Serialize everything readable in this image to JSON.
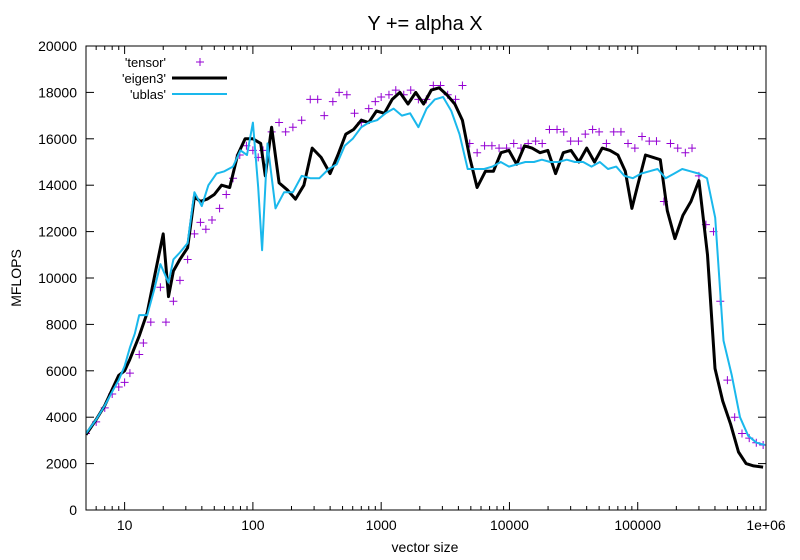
{
  "chart_data": {
    "type": "line",
    "title": "Y += alpha X",
    "xlabel": "vector size",
    "ylabel": "MFLOPS",
    "xscale": "log",
    "xlim": [
      5,
      1000000
    ],
    "ylim": [
      0,
      20000
    ],
    "xticks": [
      {
        "value": 10,
        "label": "10"
      },
      {
        "value": 100,
        "label": "100"
      },
      {
        "value": 1000,
        "label": "1000"
      },
      {
        "value": 10000,
        "label": "10000"
      },
      {
        "value": 100000,
        "label": "100000"
      },
      {
        "value": 1000000,
        "label": "1e+06"
      }
    ],
    "yticks": [
      {
        "value": 0,
        "label": "0"
      },
      {
        "value": 2000,
        "label": "2000"
      },
      {
        "value": 4000,
        "label": "4000"
      },
      {
        "value": 6000,
        "label": "6000"
      },
      {
        "value": 8000,
        "label": "8000"
      },
      {
        "value": 10000,
        "label": "10000"
      },
      {
        "value": 12000,
        "label": "12000"
      },
      {
        "value": 14000,
        "label": "14000"
      },
      {
        "value": 16000,
        "label": "16000"
      },
      {
        "value": 18000,
        "label": "18000"
      },
      {
        "value": 20000,
        "label": "20000"
      }
    ],
    "legend_position": "top-left",
    "series": [
      {
        "name": "'tensor'",
        "style": "points",
        "color": "#9400d3",
        "points": [
          [
            5,
            3300
          ],
          [
            6,
            3800
          ],
          [
            7,
            4400
          ],
          [
            8,
            5000
          ],
          [
            9,
            5300
          ],
          [
            10,
            5500
          ],
          [
            11,
            5900
          ],
          [
            13,
            6700
          ],
          [
            14,
            7200
          ],
          [
            16,
            8100
          ],
          [
            19,
            9600
          ],
          [
            21,
            8100
          ],
          [
            24,
            9000
          ],
          [
            27,
            9900
          ],
          [
            31,
            10800
          ],
          [
            35,
            11900
          ],
          [
            39,
            12400
          ],
          [
            43,
            12100
          ],
          [
            48,
            12500
          ],
          [
            55,
            13000
          ],
          [
            62,
            13600
          ],
          [
            70,
            14300
          ],
          [
            79,
            15300
          ],
          [
            89,
            15700
          ],
          [
            100,
            15500
          ],
          [
            110,
            15200
          ],
          [
            120,
            15500
          ],
          [
            140,
            16300
          ],
          [
            160,
            16700
          ],
          [
            180,
            16300
          ],
          [
            205,
            16500
          ],
          [
            240,
            16800
          ],
          [
            280,
            17700
          ],
          [
            320,
            17700
          ],
          [
            360,
            17000
          ],
          [
            420,
            17600
          ],
          [
            470,
            18000
          ],
          [
            540,
            17900
          ],
          [
            620,
            17100
          ],
          [
            700,
            16700
          ],
          [
            800,
            17300
          ],
          [
            900,
            17600
          ],
          [
            1000,
            17800
          ],
          [
            1150,
            17900
          ],
          [
            1300,
            18100
          ],
          [
            1500,
            17900
          ],
          [
            1700,
            18100
          ],
          [
            1950,
            17700
          ],
          [
            2250,
            17700
          ],
          [
            2550,
            18300
          ],
          [
            2900,
            18300
          ],
          [
            3300,
            17900
          ],
          [
            3800,
            17700
          ],
          [
            4300,
            18300
          ],
          [
            4900,
            15800
          ],
          [
            5600,
            15400
          ],
          [
            6400,
            15700
          ],
          [
            7300,
            15700
          ],
          [
            8300,
            15600
          ],
          [
            9500,
            15600
          ],
          [
            10800,
            15800
          ],
          [
            12300,
            15600
          ],
          [
            14000,
            15800
          ],
          [
            16000,
            15900
          ],
          [
            18000,
            15800
          ],
          [
            20500,
            16400
          ],
          [
            23500,
            16400
          ],
          [
            26500,
            16300
          ],
          [
            30000,
            15900
          ],
          [
            34500,
            15900
          ],
          [
            39000,
            16200
          ],
          [
            44500,
            16400
          ],
          [
            50000,
            16300
          ],
          [
            57000,
            15800
          ],
          [
            65000,
            16300
          ],
          [
            74000,
            16300
          ],
          [
            84000,
            15800
          ],
          [
            95000,
            15600
          ],
          [
            108000,
            16100
          ],
          [
            123000,
            15900
          ],
          [
            140000,
            15900
          ],
          [
            160000,
            13300
          ],
          [
            180000,
            15800
          ],
          [
            205000,
            15600
          ],
          [
            235000,
            15400
          ],
          [
            265000,
            15600
          ],
          [
            300000,
            14400
          ],
          [
            340000,
            12300
          ],
          [
            390000,
            12000
          ],
          [
            440000,
            9000
          ],
          [
            500000,
            5600
          ],
          [
            570000,
            4000
          ],
          [
            650000,
            3300
          ],
          [
            740000,
            3100
          ],
          [
            840000,
            2900
          ],
          [
            950000,
            2800
          ]
        ]
      },
      {
        "name": "'eigen3'",
        "style": "line",
        "color": "#000000",
        "points": [
          [
            5,
            3250
          ],
          [
            6,
            3900
          ],
          [
            7,
            4500
          ],
          [
            8,
            5200
          ],
          [
            9,
            5800
          ],
          [
            10,
            6000
          ],
          [
            11,
            6500
          ],
          [
            13,
            7500
          ],
          [
            15,
            8500
          ],
          [
            17,
            10000
          ],
          [
            20,
            11900
          ],
          [
            22,
            9200
          ],
          [
            24,
            10300
          ],
          [
            27,
            10800
          ],
          [
            31,
            11300
          ],
          [
            35,
            13500
          ],
          [
            39,
            13300
          ],
          [
            44,
            13400
          ],
          [
            50,
            13600
          ],
          [
            57,
            14000
          ],
          [
            66,
            13900
          ],
          [
            76,
            15300
          ],
          [
            87,
            16000
          ],
          [
            100,
            16000
          ],
          [
            115,
            15800
          ],
          [
            125,
            14400
          ],
          [
            140,
            16500
          ],
          [
            160,
            14100
          ],
          [
            185,
            13800
          ],
          [
            215,
            13400
          ],
          [
            250,
            14000
          ],
          [
            290,
            15600
          ],
          [
            340,
            15200
          ],
          [
            400,
            14500
          ],
          [
            460,
            15300
          ],
          [
            530,
            16200
          ],
          [
            610,
            16400
          ],
          [
            700,
            16800
          ],
          [
            800,
            16700
          ],
          [
            920,
            17200
          ],
          [
            1060,
            17100
          ],
          [
            1220,
            17700
          ],
          [
            1400,
            18000
          ],
          [
            1620,
            17500
          ],
          [
            1860,
            18000
          ],
          [
            2140,
            17500
          ],
          [
            2460,
            18100
          ],
          [
            2830,
            18200
          ],
          [
            3250,
            17900
          ],
          [
            3750,
            17500
          ],
          [
            4300,
            16800
          ],
          [
            4900,
            15200
          ],
          [
            5600,
            13900
          ],
          [
            6500,
            14600
          ],
          [
            7500,
            14600
          ],
          [
            8600,
            15400
          ],
          [
            9900,
            15500
          ],
          [
            11400,
            14900
          ],
          [
            13100,
            15700
          ],
          [
            15000,
            15600
          ],
          [
            17300,
            15400
          ],
          [
            19900,
            15500
          ],
          [
            22900,
            14500
          ],
          [
            26300,
            15400
          ],
          [
            30200,
            15500
          ],
          [
            34800,
            15000
          ],
          [
            40000,
            15600
          ],
          [
            46000,
            15000
          ],
          [
            52900,
            15600
          ],
          [
            60800,
            15500
          ],
          [
            70000,
            15300
          ],
          [
            80000,
            14600
          ],
          [
            90000,
            13000
          ],
          [
            100000,
            14000
          ],
          [
            115000,
            15300
          ],
          [
            132000,
            15200
          ],
          [
            150000,
            15100
          ],
          [
            170000,
            12900
          ],
          [
            195000,
            11700
          ],
          [
            225000,
            12700
          ],
          [
            260000,
            13300
          ],
          [
            300000,
            14200
          ],
          [
            350000,
            11000
          ],
          [
            400000,
            6100
          ],
          [
            460000,
            4700
          ],
          [
            530000,
            3700
          ],
          [
            610000,
            2500
          ],
          [
            700000,
            2000
          ],
          [
            800000,
            1900
          ],
          [
            950000,
            1850
          ]
        ]
      },
      {
        "name": "'ublas'",
        "style": "line",
        "color": "#1ab8ec",
        "points": [
          [
            5,
            3300
          ],
          [
            6,
            3900
          ],
          [
            7,
            4500
          ],
          [
            8,
            5100
          ],
          [
            9,
            5600
          ],
          [
            10,
            6200
          ],
          [
            11,
            7000
          ],
          [
            12,
            7600
          ],
          [
            13,
            8400
          ],
          [
            15,
            8400
          ],
          [
            17,
            9500
          ],
          [
            19,
            10600
          ],
          [
            22,
            9800
          ],
          [
            24,
            10800
          ],
          [
            27,
            11100
          ],
          [
            31,
            11500
          ],
          [
            35,
            13700
          ],
          [
            40,
            13100
          ],
          [
            45,
            14000
          ],
          [
            52,
            14500
          ],
          [
            60,
            14600
          ],
          [
            70,
            14800
          ],
          [
            80,
            15500
          ],
          [
            90,
            15300
          ],
          [
            100,
            16700
          ],
          [
            110,
            13900
          ],
          [
            118,
            11200
          ],
          [
            130,
            15800
          ],
          [
            150,
            13000
          ],
          [
            175,
            13700
          ],
          [
            205,
            13700
          ],
          [
            240,
            14400
          ],
          [
            280,
            14300
          ],
          [
            330,
            14300
          ],
          [
            390,
            14700
          ],
          [
            450,
            14900
          ],
          [
            520,
            15700
          ],
          [
            600,
            16000
          ],
          [
            700,
            16500
          ],
          [
            800,
            16700
          ],
          [
            930,
            16800
          ],
          [
            1080,
            17100
          ],
          [
            1250,
            17300
          ],
          [
            1450,
            17000
          ],
          [
            1680,
            17100
          ],
          [
            1950,
            16500
          ],
          [
            2260,
            17300
          ],
          [
            2620,
            17700
          ],
          [
            3040,
            17800
          ],
          [
            3520,
            17200
          ],
          [
            4080,
            16200
          ],
          [
            4730,
            14700
          ],
          [
            5480,
            14700
          ],
          [
            6360,
            14700
          ],
          [
            7370,
            14800
          ],
          [
            8550,
            15000
          ],
          [
            9920,
            14800
          ],
          [
            11500,
            14900
          ],
          [
            13300,
            15000
          ],
          [
            15500,
            15000
          ],
          [
            17900,
            15100
          ],
          [
            20800,
            15000
          ],
          [
            24100,
            15000
          ],
          [
            28000,
            15100
          ],
          [
            32400,
            15000
          ],
          [
            37600,
            15000
          ],
          [
            43600,
            14800
          ],
          [
            50600,
            15000
          ],
          [
            58700,
            14700
          ],
          [
            68000,
            14800
          ],
          [
            78900,
            14400
          ],
          [
            91500,
            14300
          ],
          [
            106000,
            14500
          ],
          [
            123000,
            14600
          ],
          [
            143000,
            14700
          ],
          [
            165000,
            14300
          ],
          [
            192000,
            14500
          ],
          [
            222000,
            14700
          ],
          [
            258000,
            14600
          ],
          [
            299000,
            14500
          ],
          [
            347000,
            14300
          ],
          [
            402000,
            12600
          ],
          [
            466000,
            7300
          ],
          [
            541000,
            5800
          ],
          [
            627000,
            4000
          ],
          [
            727000,
            3200
          ],
          [
            843000,
            2900
          ],
          [
            978000,
            2800
          ]
        ]
      }
    ]
  }
}
